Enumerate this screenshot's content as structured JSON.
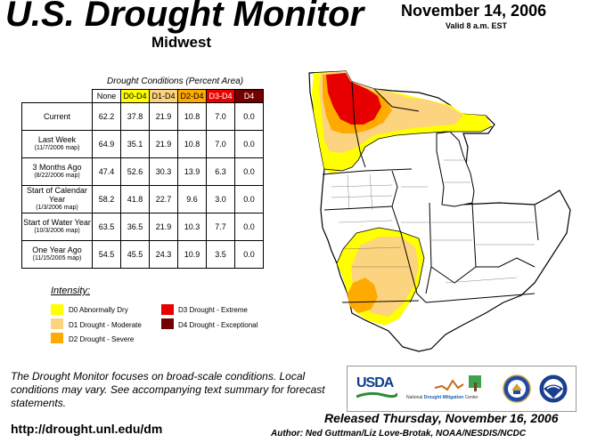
{
  "header": {
    "title": "U.S. Drought Monitor",
    "region": "Midwest",
    "date": "November 14, 2006",
    "valid": "Valid 8 a.m. EST"
  },
  "table": {
    "caption": "Drought Conditions (Percent Area)",
    "columns": [
      "None",
      "D0-D4",
      "D1-D4",
      "D2-D4",
      "D3-D4",
      "D4"
    ],
    "column_colors": [
      "#ffffff",
      "#ffff00",
      "#fcd37f",
      "#ffaa00",
      "#e60000",
      "#730000"
    ],
    "rows": [
      {
        "label": "Current",
        "sub": "",
        "values": [
          "62.2",
          "37.8",
          "21.9",
          "10.8",
          "7.0",
          "0.0"
        ]
      },
      {
        "label": "Last Week",
        "sub": "(11/7/2006 map)",
        "values": [
          "64.9",
          "35.1",
          "21.9",
          "10.8",
          "7.0",
          "0.0"
        ]
      },
      {
        "label": "3 Months Ago",
        "sub": "(8/22/2006 map)",
        "values": [
          "47.4",
          "52.6",
          "30.3",
          "13.9",
          "6.3",
          "0.0"
        ]
      },
      {
        "label": "Start of Calendar Year",
        "sub": "(1/3/2006 map)",
        "values": [
          "58.2",
          "41.8",
          "22.7",
          "9.6",
          "3.0",
          "0.0"
        ]
      },
      {
        "label": "Start of Water Year",
        "sub": "(10/3/2006 map)",
        "values": [
          "63.5",
          "36.5",
          "21.9",
          "10.3",
          "7.7",
          "0.0"
        ]
      },
      {
        "label": "One Year Ago",
        "sub": "(11/15/2005 map)",
        "values": [
          "54.5",
          "45.5",
          "24.3",
          "10.9",
          "3.5",
          "0.0"
        ]
      }
    ]
  },
  "legend": {
    "title": "Intensity:",
    "items": [
      {
        "label": "D0 Abnormally Dry",
        "color": "#ffff00"
      },
      {
        "label": "D1 Drought - Moderate",
        "color": "#fcd37f"
      },
      {
        "label": "D2 Drought - Severe",
        "color": "#ffaa00"
      },
      {
        "label": "D3 Drought - Extreme",
        "color": "#e60000"
      },
      {
        "label": "D4 Drought - Exceptional",
        "color": "#730000"
      }
    ]
  },
  "footer": {
    "note": "The Drought Monitor focuses on broad-scale conditions. Local conditions may vary. See accompanying text summary for forecast statements.",
    "url": "http://drought.unl.edu/dm",
    "released": "Released Thursday, November 16, 2006",
    "author": "Author: Ned Guttman/Liz Love-Brotak, NOAA/NESDIS/NCDC"
  },
  "logos": {
    "usda": "USDA",
    "ndmc_pre": "National",
    "ndmc_bold": "Drought Mitigation",
    "ndmc_post": "Center"
  }
}
